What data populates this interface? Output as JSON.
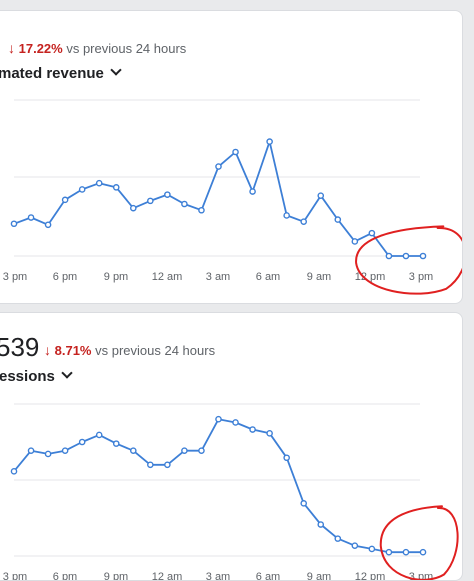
{
  "colors": {
    "line": "#3d7fd6",
    "grid": "#e4e6e8",
    "negative": "#c5221f",
    "annotation": "#e02020"
  },
  "cards": [
    {
      "big_value": "",
      "change_arrow": "↓",
      "change_pct": "17.22%",
      "change_text": "vs previous 24 hours",
      "metric_label": "mated revenue",
      "dropdown_icon": "chevron-down-icon"
    },
    {
      "big_value": "539",
      "change_arrow": "↓",
      "change_pct": "8.71%",
      "change_text": "vs previous 24 hours",
      "metric_label": "essions",
      "dropdown_icon": "chevron-down-icon"
    }
  ],
  "chart_data": [
    {
      "type": "line",
      "x_ticks": [
        "3 pm",
        "6 pm",
        "9 pm",
        "12 am",
        "3 am",
        "6 am",
        "9 am",
        "12 pm",
        "3 pm"
      ],
      "x": [
        0,
        1,
        2,
        3,
        4,
        5,
        6,
        7,
        8,
        9,
        10,
        11,
        12,
        13,
        14,
        15,
        16,
        17,
        18,
        19,
        20,
        21,
        22,
        23,
        24
      ],
      "series": [
        {
          "values": [
            3.1,
            3.7,
            3.0,
            5.4,
            6.4,
            7.0,
            6.6,
            4.6,
            5.3,
            5.9,
            5.0,
            4.4,
            8.6,
            10.0,
            6.2,
            11.0,
            3.9,
            3.3,
            5.8,
            3.5,
            1.4,
            2.2,
            0,
            0,
            0
          ]
        }
      ],
      "ylim": [
        0,
        15
      ],
      "grid": true,
      "annotation": "red hand-drawn circle around the last points (12 pm – 3 pm)"
    },
    {
      "type": "line",
      "x_ticks": [
        "3 pm",
        "6 pm",
        "9 pm",
        "12 am",
        "3 am",
        "6 am",
        "9 am",
        "12 pm",
        "3 pm"
      ],
      "x": [
        0,
        1,
        2,
        3,
        4,
        5,
        6,
        7,
        8,
        9,
        10,
        11,
        12,
        13,
        14,
        15,
        16,
        17,
        18,
        19,
        20,
        21,
        22,
        23,
        24
      ],
      "series": [
        {
          "values": [
            15.6,
            19.4,
            18.8,
            19.4,
            21.0,
            22.3,
            20.7,
            19.4,
            16.8,
            16.8,
            19.4,
            19.4,
            25.2,
            24.6,
            23.3,
            22.6,
            18.1,
            9.7,
            5.8,
            3.2,
            1.9,
            1.3,
            0.7,
            0.7,
            0.7
          ]
        }
      ],
      "ylim": [
        0,
        28
      ],
      "grid": true,
      "annotation": "red hand-drawn circle around the last points (12 pm – 3 pm)"
    }
  ]
}
